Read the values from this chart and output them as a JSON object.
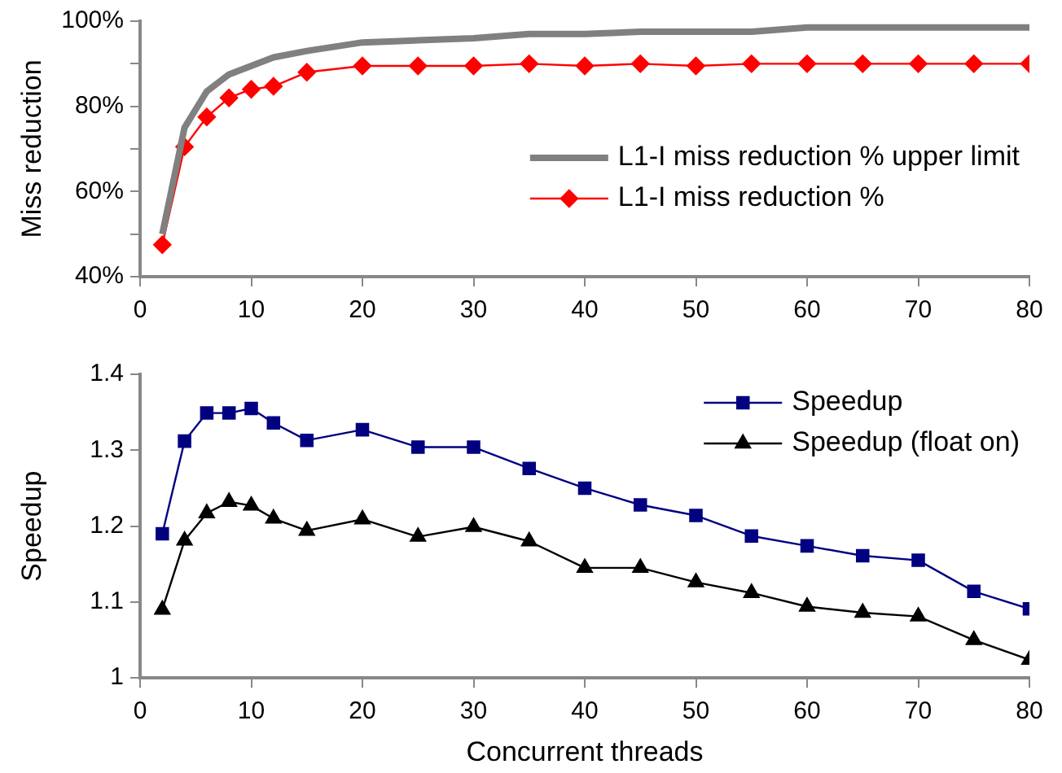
{
  "chart_data": [
    {
      "type": "line",
      "ylabel": "Miss reduction",
      "x": [
        2,
        4,
        6,
        8,
        10,
        12,
        15,
        20,
        25,
        30,
        35,
        40,
        45,
        50,
        55,
        60,
        65,
        70,
        75,
        80
      ],
      "xlim": [
        0,
        80
      ],
      "xticks": [
        0,
        10,
        20,
        30,
        40,
        50,
        60,
        70,
        80
      ],
      "ylim": [
        40,
        100
      ],
      "yticks": [
        {
          "value": 40,
          "label": "40%"
        },
        {
          "value": 50,
          "label": null
        },
        {
          "value": 60,
          "label": "60%"
        },
        {
          "value": 70,
          "label": null
        },
        {
          "value": 80,
          "label": "80%"
        },
        {
          "value": 90,
          "label": null
        },
        {
          "value": 100,
          "label": "100%"
        }
      ],
      "grid": false,
      "legend": "right",
      "series": [
        {
          "name": "L1-I miss reduction % upper limit",
          "color": "#808080",
          "marker": "none",
          "values": [
            50,
            75,
            83.5,
            87.5,
            89.5,
            91.5,
            93,
            95,
            95.5,
            96,
            97,
            97,
            97.5,
            97.5,
            97.5,
            98.5,
            98.5,
            98.5,
            98.5,
            98.5
          ]
        },
        {
          "name": "L1-I miss reduction %",
          "color": "#ff0000",
          "marker": "diamond",
          "values": [
            47.5,
            70.5,
            77.5,
            82,
            84,
            84.7,
            88,
            89.5,
            89.5,
            89.5,
            90,
            89.5,
            90,
            89.5,
            90,
            90,
            90,
            90,
            90,
            90
          ]
        }
      ]
    },
    {
      "type": "line",
      "xlabel": "Concurrent threads",
      "ylabel": "Speedup",
      "x": [
        2,
        4,
        6,
        8,
        10,
        12,
        15,
        20,
        25,
        30,
        35,
        40,
        45,
        50,
        55,
        60,
        65,
        70,
        75,
        80
      ],
      "xlim": [
        0,
        80
      ],
      "xticks": [
        0,
        10,
        20,
        30,
        40,
        50,
        60,
        70,
        80
      ],
      "ylim": [
        1,
        1.4
      ],
      "yticks": [
        1,
        1.1,
        1.2,
        1.3,
        1.4
      ],
      "grid": false,
      "legend": "top right",
      "series": [
        {
          "name": "Speedup",
          "color": "#000080",
          "marker": "square",
          "values": [
            1.19,
            1.312,
            1.349,
            1.349,
            1.355,
            1.336,
            1.313,
            1.327,
            1.304,
            1.304,
            1.276,
            1.25,
            1.228,
            1.214,
            1.187,
            1.174,
            1.161,
            1.155,
            1.114,
            1.091
          ]
        },
        {
          "name": "Speedup (float on)",
          "color": "#000000",
          "marker": "triangle",
          "values": [
            1.09,
            1.181,
            1.217,
            1.232,
            1.227,
            1.21,
            1.194,
            1.209,
            1.186,
            1.199,
            1.18,
            1.145,
            1.145,
            1.126,
            1.112,
            1.094,
            1.086,
            1.081,
            1.05,
            1.024
          ]
        }
      ]
    }
  ]
}
